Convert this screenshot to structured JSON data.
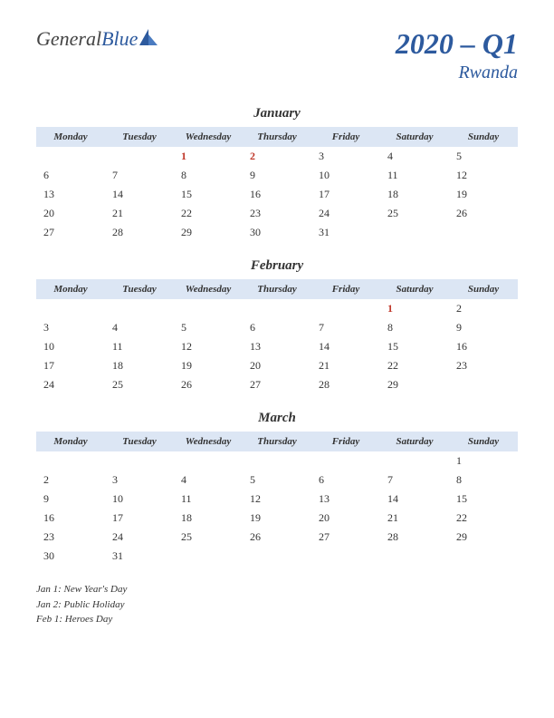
{
  "logo": {
    "part1": "General",
    "part2": "Blue",
    "color1": "#444444",
    "color2": "#2d5a9e",
    "icon_color": "#2d5a9e"
  },
  "header": {
    "title": "2020 – Q1",
    "country": "Rwanda",
    "title_color": "#2d5a9e"
  },
  "day_headers": [
    "Monday",
    "Tuesday",
    "Wednesday",
    "Thursday",
    "Friday",
    "Saturday",
    "Sunday"
  ],
  "header_bg": "#dce6f4",
  "months": [
    {
      "name": "January",
      "weeks": [
        [
          "",
          "",
          "1",
          "2",
          "3",
          "4",
          "5"
        ],
        [
          "6",
          "7",
          "8",
          "9",
          "10",
          "11",
          "12"
        ],
        [
          "13",
          "14",
          "15",
          "16",
          "17",
          "18",
          "19"
        ],
        [
          "20",
          "21",
          "22",
          "23",
          "24",
          "25",
          "26"
        ],
        [
          "27",
          "28",
          "29",
          "30",
          "31",
          "",
          ""
        ]
      ],
      "holidays": [
        [
          0,
          2
        ],
        [
          0,
          3
        ]
      ]
    },
    {
      "name": "February",
      "weeks": [
        [
          "",
          "",
          "",
          "",
          "",
          "1",
          "2"
        ],
        [
          "3",
          "4",
          "5",
          "6",
          "7",
          "8",
          "9"
        ],
        [
          "10",
          "11",
          "12",
          "13",
          "14",
          "15",
          "16"
        ],
        [
          "17",
          "18",
          "19",
          "20",
          "21",
          "22",
          "23"
        ],
        [
          "24",
          "25",
          "26",
          "27",
          "28",
          "29",
          ""
        ]
      ],
      "holidays": [
        [
          0,
          5
        ]
      ]
    },
    {
      "name": "March",
      "weeks": [
        [
          "",
          "",
          "",
          "",
          "",
          "",
          "1"
        ],
        [
          "2",
          "3",
          "4",
          "5",
          "6",
          "7",
          "8"
        ],
        [
          "9",
          "10",
          "11",
          "12",
          "13",
          "14",
          "15"
        ],
        [
          "16",
          "17",
          "18",
          "19",
          "20",
          "21",
          "22"
        ],
        [
          "23",
          "24",
          "25",
          "26",
          "27",
          "28",
          "29"
        ],
        [
          "30",
          "31",
          "",
          "",
          "",
          "",
          ""
        ]
      ],
      "holidays": []
    }
  ],
  "holidays_list": [
    "Jan 1: New Year's Day",
    "Jan 2: Public Holiday",
    "Feb 1: Heroes Day"
  ]
}
